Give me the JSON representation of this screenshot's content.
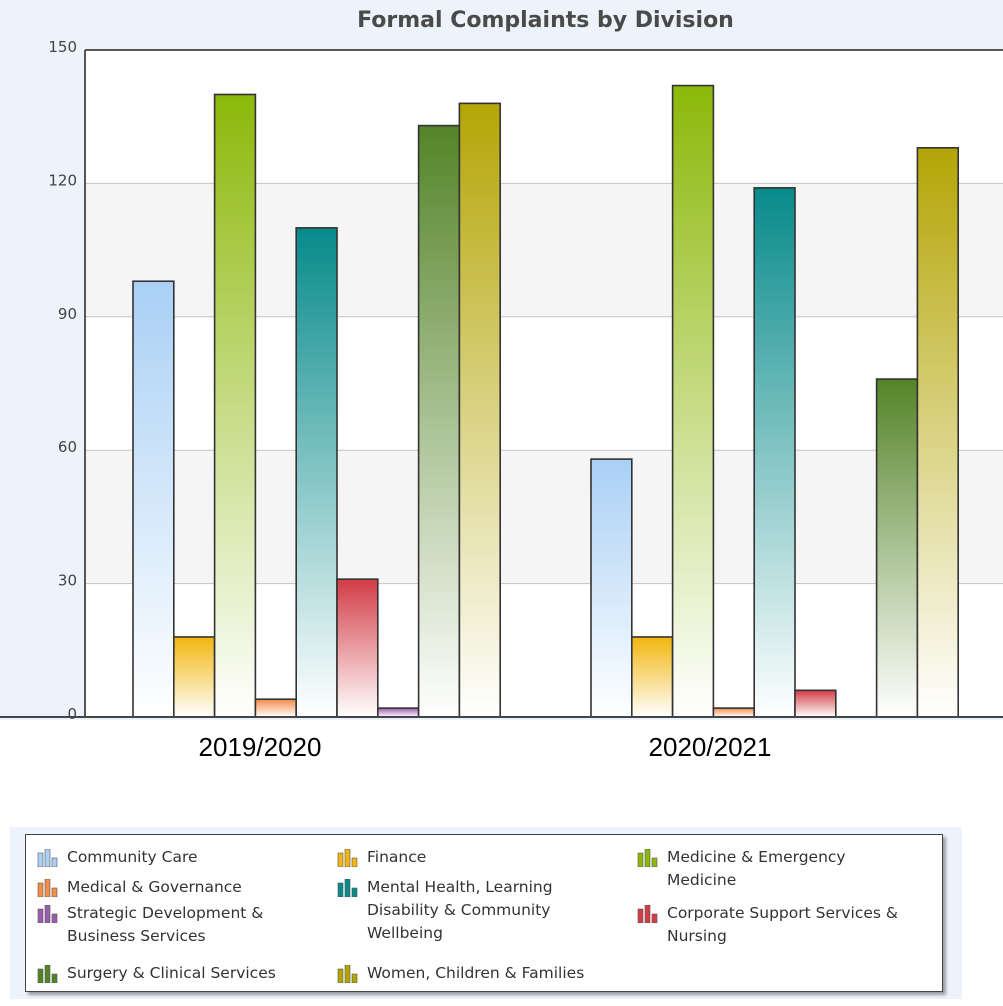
{
  "chart_data": {
    "type": "bar",
    "title": "Formal Complaints by Division",
    "categories": [
      "2019/2020",
      "2020/2021"
    ],
    "y_ticks": [
      "0",
      "30",
      "60",
      "90",
      "120",
      "150"
    ],
    "ylim": [
      0,
      150
    ],
    "grid": true,
    "legend_position": "bottom",
    "series": [
      {
        "name": "Community Care",
        "color": "#a9d0f5",
        "values": [
          98,
          58
        ]
      },
      {
        "name": "Finance",
        "color": "#f1b60f",
        "values": [
          18,
          18
        ]
      },
      {
        "name": "Medicine & Emergency Medicine",
        "color": "#8cb80a",
        "values": [
          140,
          142
        ]
      },
      {
        "name": "Medical & Governance",
        "color": "#f58c48",
        "values": [
          4,
          2
        ]
      },
      {
        "name": "Mental Health, Learning Disability & Community Wellbeing",
        "color": "#078a8a",
        "values": [
          110,
          119
        ]
      },
      {
        "name": "Corporate Support Services & Nursing",
        "color": "#d23c46",
        "values": [
          31,
          6
        ]
      },
      {
        "name": "Strategic Development & Business Services",
        "color": "#9a5cad",
        "values": [
          2,
          0
        ]
      },
      {
        "name": "Surgery & Clinical Services",
        "color": "#548428",
        "values": [
          133,
          76
        ]
      },
      {
        "name": "Women, Children & Families",
        "color": "#b4a506",
        "values": [
          138,
          128
        ]
      }
    ]
  },
  "legend": {
    "items": [
      {
        "label": "Community Care",
        "color": "#a9d0f5"
      },
      {
        "label": "Finance",
        "color": "#f1b60f"
      },
      {
        "label": "Medicine & Emergency\nMedicine",
        "color": "#8cb80a"
      },
      {
        "label": "Medical & Governance",
        "color": "#f58c48"
      },
      {
        "label": "Mental Health, Learning\nDisability & Community\nWellbeing",
        "color": "#078a8a"
      },
      {
        "label": "Corporate Support Services &\nNursing",
        "color": "#d23c46"
      },
      {
        "label": "Strategic Development &\nBusiness Services",
        "color": "#9a5cad"
      },
      {
        "label": "Surgery & Clinical Services",
        "color": "#548428"
      },
      {
        "label": "Women, Children & Families",
        "color": "#b4a506"
      }
    ]
  }
}
